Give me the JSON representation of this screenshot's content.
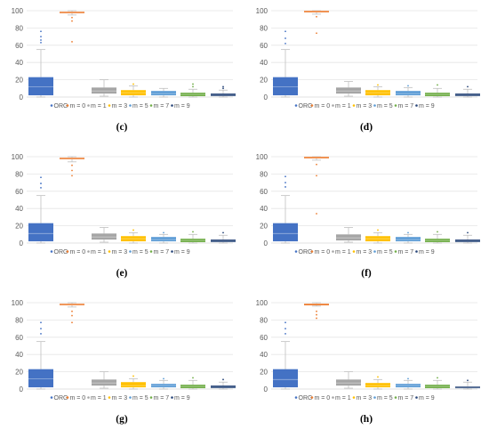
{
  "colors": {
    "ORG": "#4472C4",
    "m = 0": "#ED7D31",
    "m = 1": "#A5A5A5",
    "m = 3": "#FFC000",
    "m = 5": "#5B9BD5",
    "m = 7": "#70AD47",
    "m = 9": "#264478",
    "grid": "#E5E5E5",
    "whisker": "#BFBFBF"
  },
  "chart_data": [
    {
      "type": "box",
      "label": "(c)",
      "ylim": [
        0,
        100
      ],
      "yticks": [
        0,
        20,
        40,
        60,
        80,
        100
      ],
      "grid": true,
      "legend_position": "bottom",
      "categories": [
        "ORG",
        "m = 0",
        "m = 1",
        "m = 3",
        "m = 5",
        "m = 7",
        "m = 9"
      ],
      "series": [
        {
          "name": "ORG",
          "min": 0,
          "q1": 2,
          "median": 12,
          "q3": 23,
          "max": 55,
          "outliers": [
            63,
            66,
            70,
            76
          ]
        },
        {
          "name": "m = 0",
          "min": 95,
          "q1": 97,
          "median": 98,
          "q3": 99,
          "max": 100,
          "outliers": [
            92,
            88,
            64
          ]
        },
        {
          "name": "m = 1",
          "min": 1,
          "q1": 4,
          "median": 7,
          "q3": 11,
          "max": 20,
          "outliers": []
        },
        {
          "name": "m = 3",
          "min": 0,
          "q1": 2,
          "median": 5,
          "q3": 8,
          "max": 13,
          "outliers": [
            15
          ]
        },
        {
          "name": "m = 5",
          "min": 0,
          "q1": 2,
          "median": 4,
          "q3": 7,
          "max": 10,
          "outliers": []
        },
        {
          "name": "m = 7",
          "min": 0,
          "q1": 1,
          "median": 3,
          "q3": 5,
          "max": 9,
          "outliers": [
            12,
            15
          ]
        },
        {
          "name": "m = 9",
          "min": 0,
          "q1": 1,
          "median": 2,
          "q3": 4,
          "max": 8,
          "outliers": [
            10,
            12
          ]
        }
      ]
    },
    {
      "type": "box",
      "label": "(d)",
      "ylim": [
        0,
        100
      ],
      "yticks": [
        0,
        20,
        40,
        60,
        80,
        100
      ],
      "grid": true,
      "legend_position": "bottom",
      "categories": [
        "ORG",
        "m = 0",
        "m = 1",
        "m = 3",
        "m = 5",
        "m = 7",
        "m = 9"
      ],
      "series": [
        {
          "name": "ORG",
          "min": 0,
          "q1": 2,
          "median": 12,
          "q3": 23,
          "max": 55,
          "outliers": [
            62,
            68,
            76
          ]
        },
        {
          "name": "m = 0",
          "min": 96,
          "q1": 98,
          "median": 99,
          "q3": 100,
          "max": 100,
          "outliers": [
            93,
            74
          ]
        },
        {
          "name": "m = 1",
          "min": 1,
          "q1": 4,
          "median": 7,
          "q3": 11,
          "max": 18,
          "outliers": []
        },
        {
          "name": "m = 3",
          "min": 0,
          "q1": 2,
          "median": 5,
          "q3": 8,
          "max": 12,
          "outliers": [
            14
          ]
        },
        {
          "name": "m = 5",
          "min": 0,
          "q1": 2,
          "median": 4,
          "q3": 7,
          "max": 11,
          "outliers": [
            13
          ]
        },
        {
          "name": "m = 7",
          "min": 0,
          "q1": 1,
          "median": 3,
          "q3": 5,
          "max": 10,
          "outliers": [
            14
          ]
        },
        {
          "name": "m = 9",
          "min": 0,
          "q1": 1,
          "median": 2,
          "q3": 4,
          "max": 9,
          "outliers": [
            12
          ]
        }
      ]
    },
    {
      "type": "box",
      "label": "(e)",
      "ylim": [
        0,
        100
      ],
      "yticks": [
        0,
        20,
        40,
        60,
        80,
        100
      ],
      "grid": true,
      "legend_position": "bottom",
      "categories": [
        "ORG",
        "m = 0",
        "m = 1",
        "m = 3",
        "m = 5",
        "m = 7",
        "m = 9"
      ],
      "series": [
        {
          "name": "ORG",
          "min": 0,
          "q1": 2,
          "median": 11,
          "q3": 23,
          "max": 55,
          "outliers": [
            64,
            69,
            76
          ]
        },
        {
          "name": "m = 0",
          "min": 94,
          "q1": 97,
          "median": 98,
          "q3": 99,
          "max": 100,
          "outliers": [
            90,
            84,
            78
          ]
        },
        {
          "name": "m = 1",
          "min": 1,
          "q1": 4,
          "median": 7,
          "q3": 11,
          "max": 18,
          "outliers": []
        },
        {
          "name": "m = 3",
          "min": 0,
          "q1": 2,
          "median": 5,
          "q3": 8,
          "max": 12,
          "outliers": [
            15
          ]
        },
        {
          "name": "m = 5",
          "min": 0,
          "q1": 2,
          "median": 4,
          "q3": 7,
          "max": 10,
          "outliers": [
            12
          ]
        },
        {
          "name": "m = 7",
          "min": 0,
          "q1": 1,
          "median": 3,
          "q3": 5,
          "max": 10,
          "outliers": [
            13
          ]
        },
        {
          "name": "m = 9",
          "min": 0,
          "q1": 1,
          "median": 2,
          "q3": 4,
          "max": 9,
          "outliers": [
            12
          ]
        }
      ]
    },
    {
      "type": "box",
      "label": "(f)",
      "ylim": [
        0,
        100
      ],
      "yticks": [
        0,
        20,
        40,
        60,
        80,
        100
      ],
      "grid": true,
      "legend_position": "bottom",
      "categories": [
        "ORG",
        "m = 0",
        "m = 1",
        "m = 3",
        "m = 5",
        "m = 7",
        "m = 9"
      ],
      "series": [
        {
          "name": "ORG",
          "min": 0,
          "q1": 2,
          "median": 11,
          "q3": 23,
          "max": 55,
          "outliers": [
            65,
            70,
            77
          ]
        },
        {
          "name": "m = 0",
          "min": 96,
          "q1": 98,
          "median": 99,
          "q3": 100,
          "max": 100,
          "outliers": [
            91,
            78,
            34
          ]
        },
        {
          "name": "m = 1",
          "min": 1,
          "q1": 3,
          "median": 6,
          "q3": 10,
          "max": 18,
          "outliers": []
        },
        {
          "name": "m = 3",
          "min": 0,
          "q1": 2,
          "median": 5,
          "q3": 8,
          "max": 12,
          "outliers": [
            15
          ]
        },
        {
          "name": "m = 5",
          "min": 0,
          "q1": 2,
          "median": 4,
          "q3": 7,
          "max": 10,
          "outliers": [
            12
          ]
        },
        {
          "name": "m = 7",
          "min": 0,
          "q1": 1,
          "median": 3,
          "q3": 5,
          "max": 10,
          "outliers": [
            13
          ]
        },
        {
          "name": "m = 9",
          "min": 0,
          "q1": 1,
          "median": 2,
          "q3": 4,
          "max": 9,
          "outliers": [
            12
          ]
        }
      ]
    },
    {
      "type": "box",
      "label": "(g)",
      "ylim": [
        0,
        100
      ],
      "yticks": [
        0,
        20,
        40,
        60,
        80,
        100
      ],
      "grid": true,
      "legend_position": "bottom",
      "categories": [
        "ORG",
        "m = 0",
        "m = 1",
        "m = 3",
        "m = 5",
        "m = 7",
        "m = 9"
      ],
      "series": [
        {
          "name": "ORG",
          "min": 0,
          "q1": 2,
          "median": 12,
          "q3": 23,
          "max": 55,
          "outliers": [
            64,
            70,
            77
          ]
        },
        {
          "name": "m = 0",
          "min": 95,
          "q1": 97,
          "median": 98,
          "q3": 99,
          "max": 100,
          "outliers": [
            90,
            85,
            77
          ]
        },
        {
          "name": "m = 1",
          "min": 1,
          "q1": 4,
          "median": 7,
          "q3": 11,
          "max": 20,
          "outliers": []
        },
        {
          "name": "m = 3",
          "min": 0,
          "q1": 2,
          "median": 4,
          "q3": 8,
          "max": 12,
          "outliers": [
            15
          ]
        },
        {
          "name": "m = 5",
          "min": 0,
          "q1": 2,
          "median": 4,
          "q3": 6,
          "max": 10,
          "outliers": [
            12
          ]
        },
        {
          "name": "m = 7",
          "min": 0,
          "q1": 1,
          "median": 3,
          "q3": 5,
          "max": 10,
          "outliers": [
            13
          ]
        },
        {
          "name": "m = 9",
          "min": 0,
          "q1": 1,
          "median": 2,
          "q3": 4,
          "max": 8,
          "outliers": [
            11
          ]
        }
      ]
    },
    {
      "type": "box",
      "label": "(h)",
      "ylim": [
        0,
        100
      ],
      "yticks": [
        0,
        20,
        40,
        60,
        80,
        100
      ],
      "grid": true,
      "legend_position": "bottom",
      "categories": [
        "ORG",
        "m = 0",
        "m = 1",
        "m = 3",
        "m = 5",
        "m = 7",
        "m = 9"
      ],
      "series": [
        {
          "name": "ORG",
          "min": 0,
          "q1": 2,
          "median": 11,
          "q3": 23,
          "max": 55,
          "outliers": [
            64,
            70,
            77
          ]
        },
        {
          "name": "m = 0",
          "min": 96,
          "q1": 98,
          "median": 99,
          "q3": 99,
          "max": 100,
          "outliers": [
            90,
            86,
            82
          ]
        },
        {
          "name": "m = 1",
          "min": 1,
          "q1": 4,
          "median": 7,
          "q3": 11,
          "max": 20,
          "outliers": []
        },
        {
          "name": "m = 3",
          "min": 0,
          "q1": 2,
          "median": 4,
          "q3": 7,
          "max": 11,
          "outliers": [
            14
          ]
        },
        {
          "name": "m = 5",
          "min": 0,
          "q1": 2,
          "median": 4,
          "q3": 6,
          "max": 10,
          "outliers": [
            12
          ]
        },
        {
          "name": "m = 7",
          "min": 0,
          "q1": 1,
          "median": 3,
          "q3": 5,
          "max": 10,
          "outliers": [
            13
          ]
        },
        {
          "name": "m = 9",
          "min": 0,
          "q1": 1,
          "median": 2,
          "q3": 3,
          "max": 8,
          "outliers": [
            10
          ]
        }
      ]
    }
  ]
}
